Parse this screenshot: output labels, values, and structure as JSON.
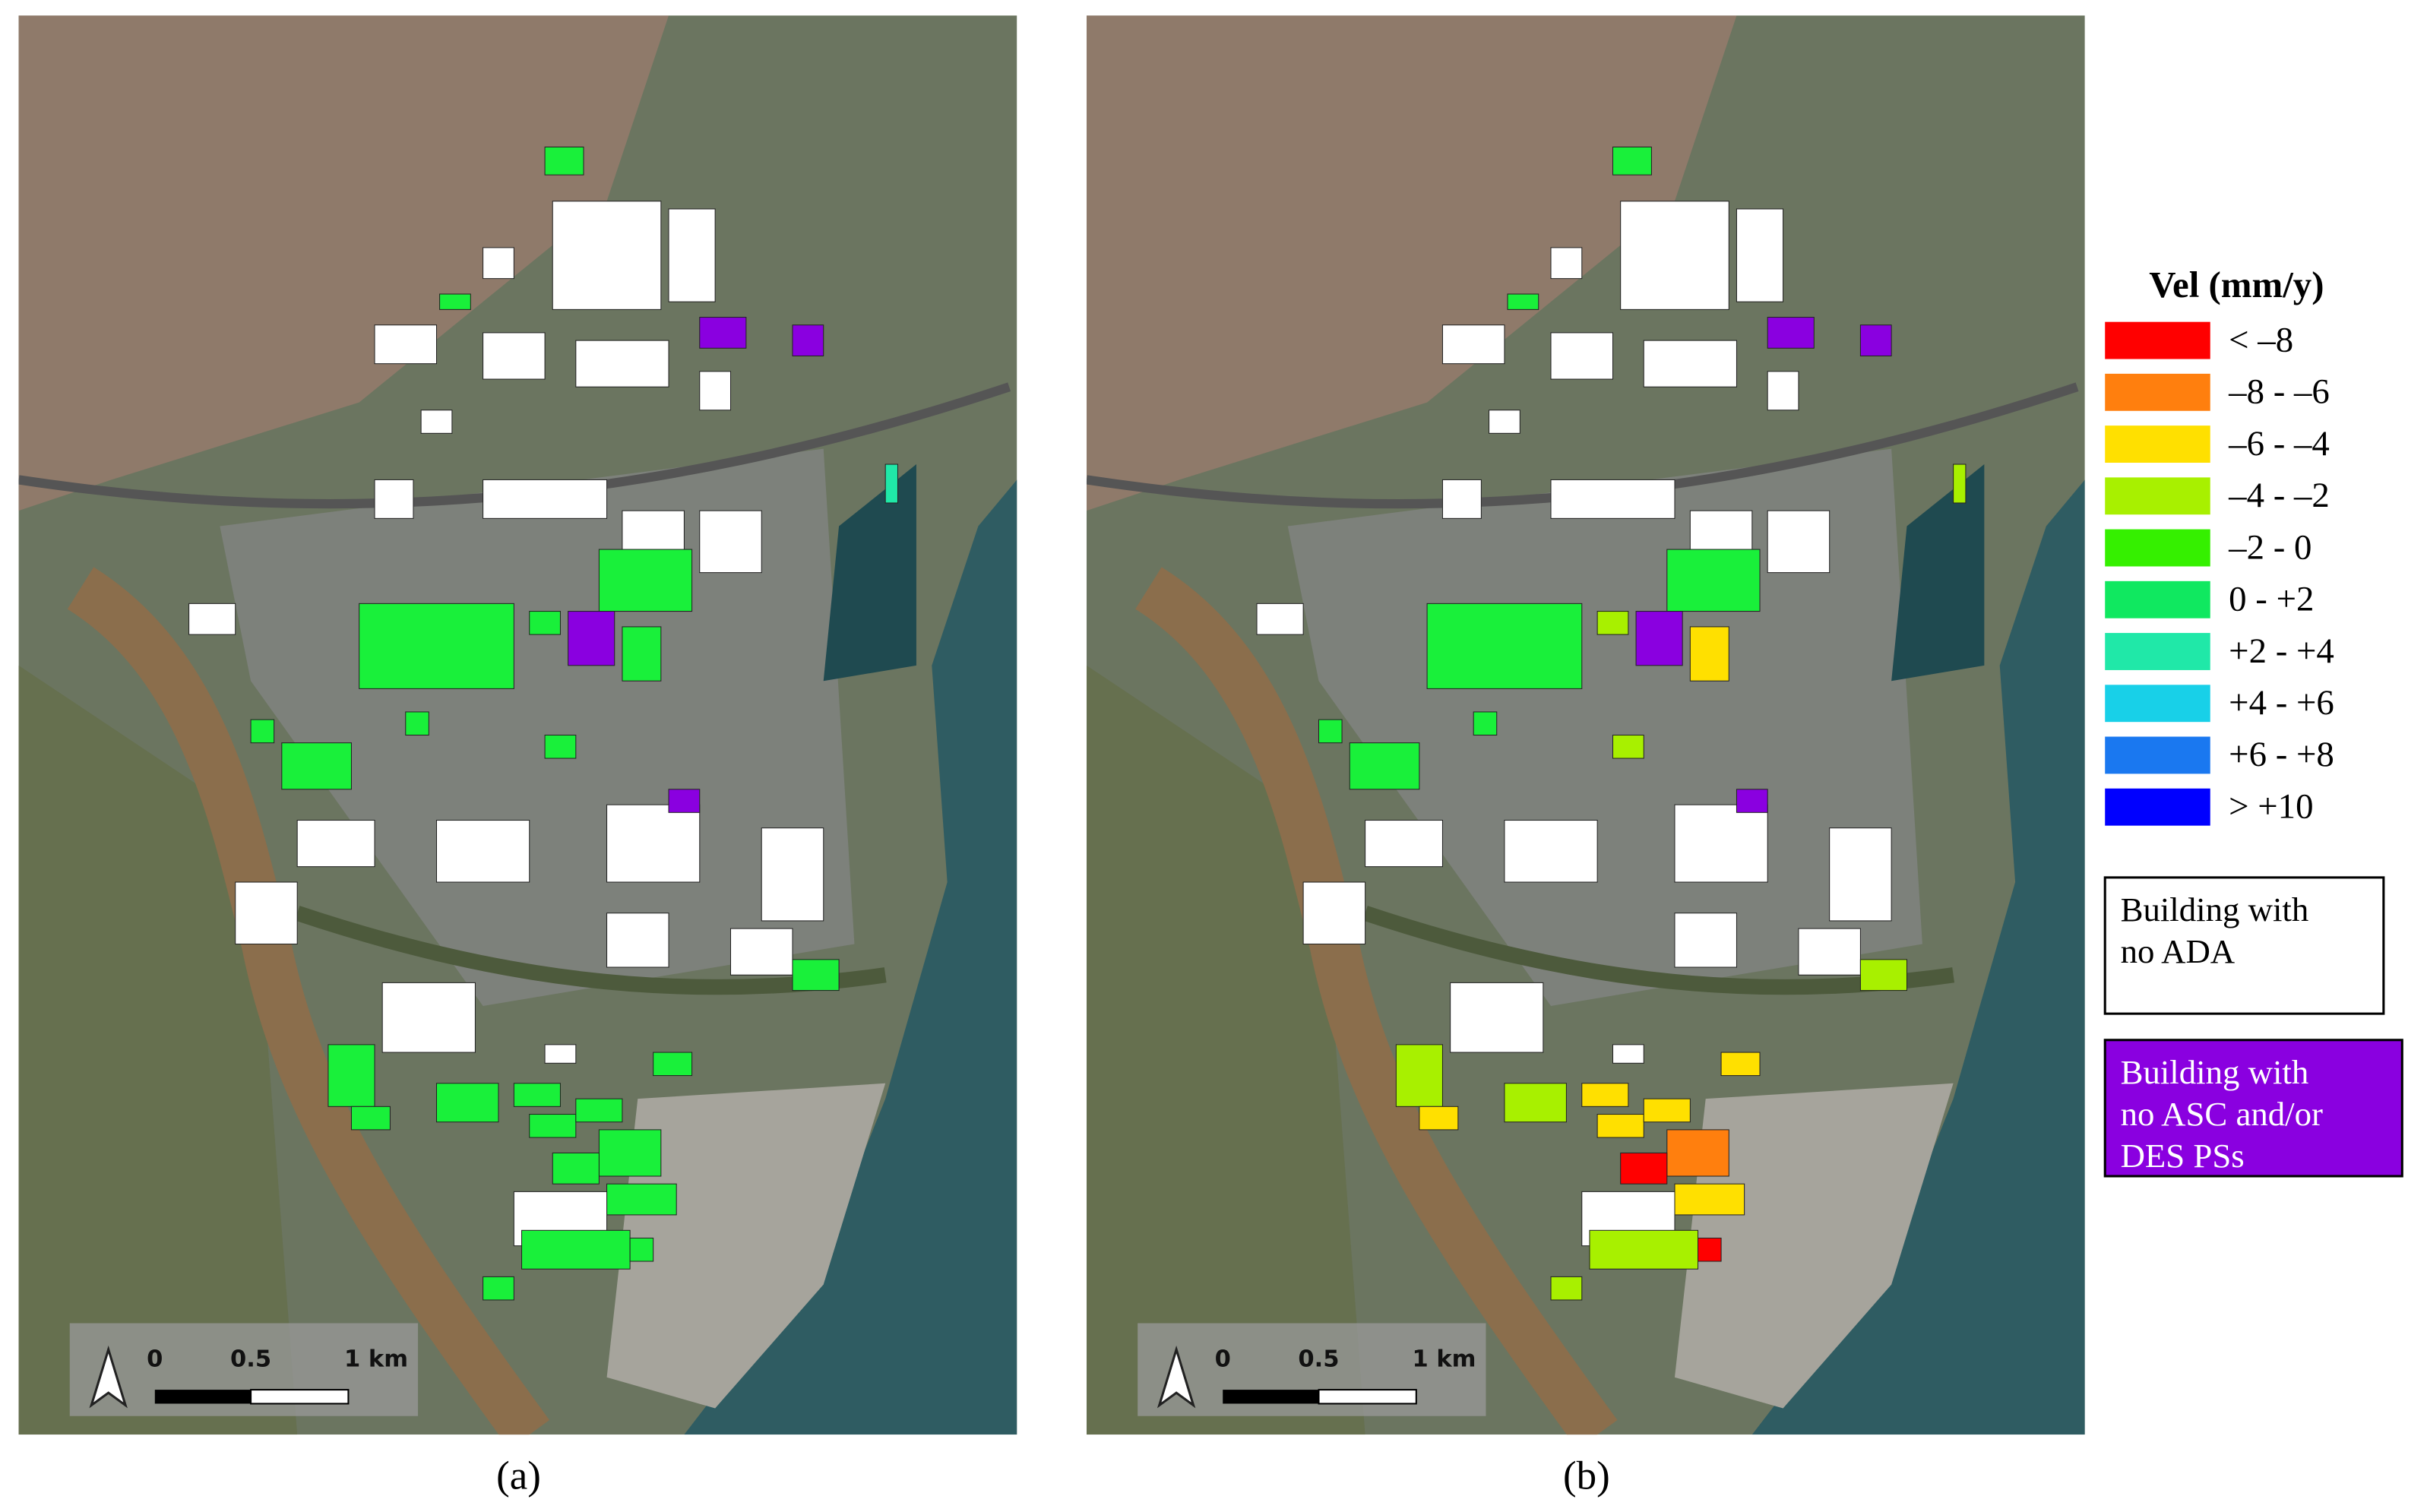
{
  "panels": [
    {
      "label": "(a)",
      "scale": {
        "zero": "0",
        "half": "0.5",
        "full": "1 km"
      }
    },
    {
      "label": "(b)",
      "scale": {
        "zero": "0",
        "half": "0.5",
        "full": "1 km"
      }
    }
  ],
  "legend": {
    "title": "Vel (mm/y)",
    "items": [
      {
        "label": "< –8",
        "color": "#ff0000"
      },
      {
        "label": "–8 - –6",
        "color": "#ff7f0e"
      },
      {
        "label": "–6 - –4",
        "color": "#ffe000"
      },
      {
        "label": "–4 - –2",
        "color": "#a8f000"
      },
      {
        "label": "–2 - 0",
        "color": "#35f000"
      },
      {
        "label": " 0 - +2",
        "color": "#10e860"
      },
      {
        "label": "+2 - +4",
        "color": "#20e8a8"
      },
      {
        "label": "+4 - +6",
        "color": "#18d0e8"
      },
      {
        "label": "+6 - +8",
        "color": "#1a78f0"
      },
      {
        "label": "> +10",
        "color": "#0000ff"
      }
    ],
    "boxes": [
      {
        "lines": [
          "Building with",
          "no ADA"
        ],
        "color": "#ffffff"
      },
      {
        "lines": [
          "Building with",
          "no  ASC and/or",
          "DES PSs"
        ],
        "color": "#8a00e0"
      }
    ]
  }
}
